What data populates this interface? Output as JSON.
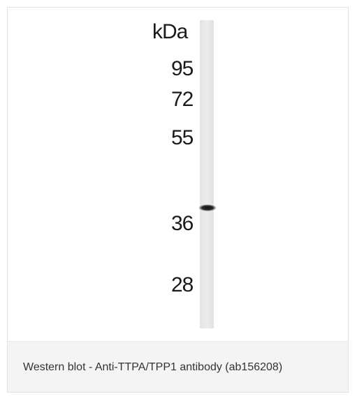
{
  "figure": {
    "unit_label": "kDa",
    "markers": [
      "95",
      "72",
      "55",
      "36",
      "28"
    ],
    "caption": "Western blot - Anti-TTPA/TPP1 antibody (ab156208)"
  }
}
